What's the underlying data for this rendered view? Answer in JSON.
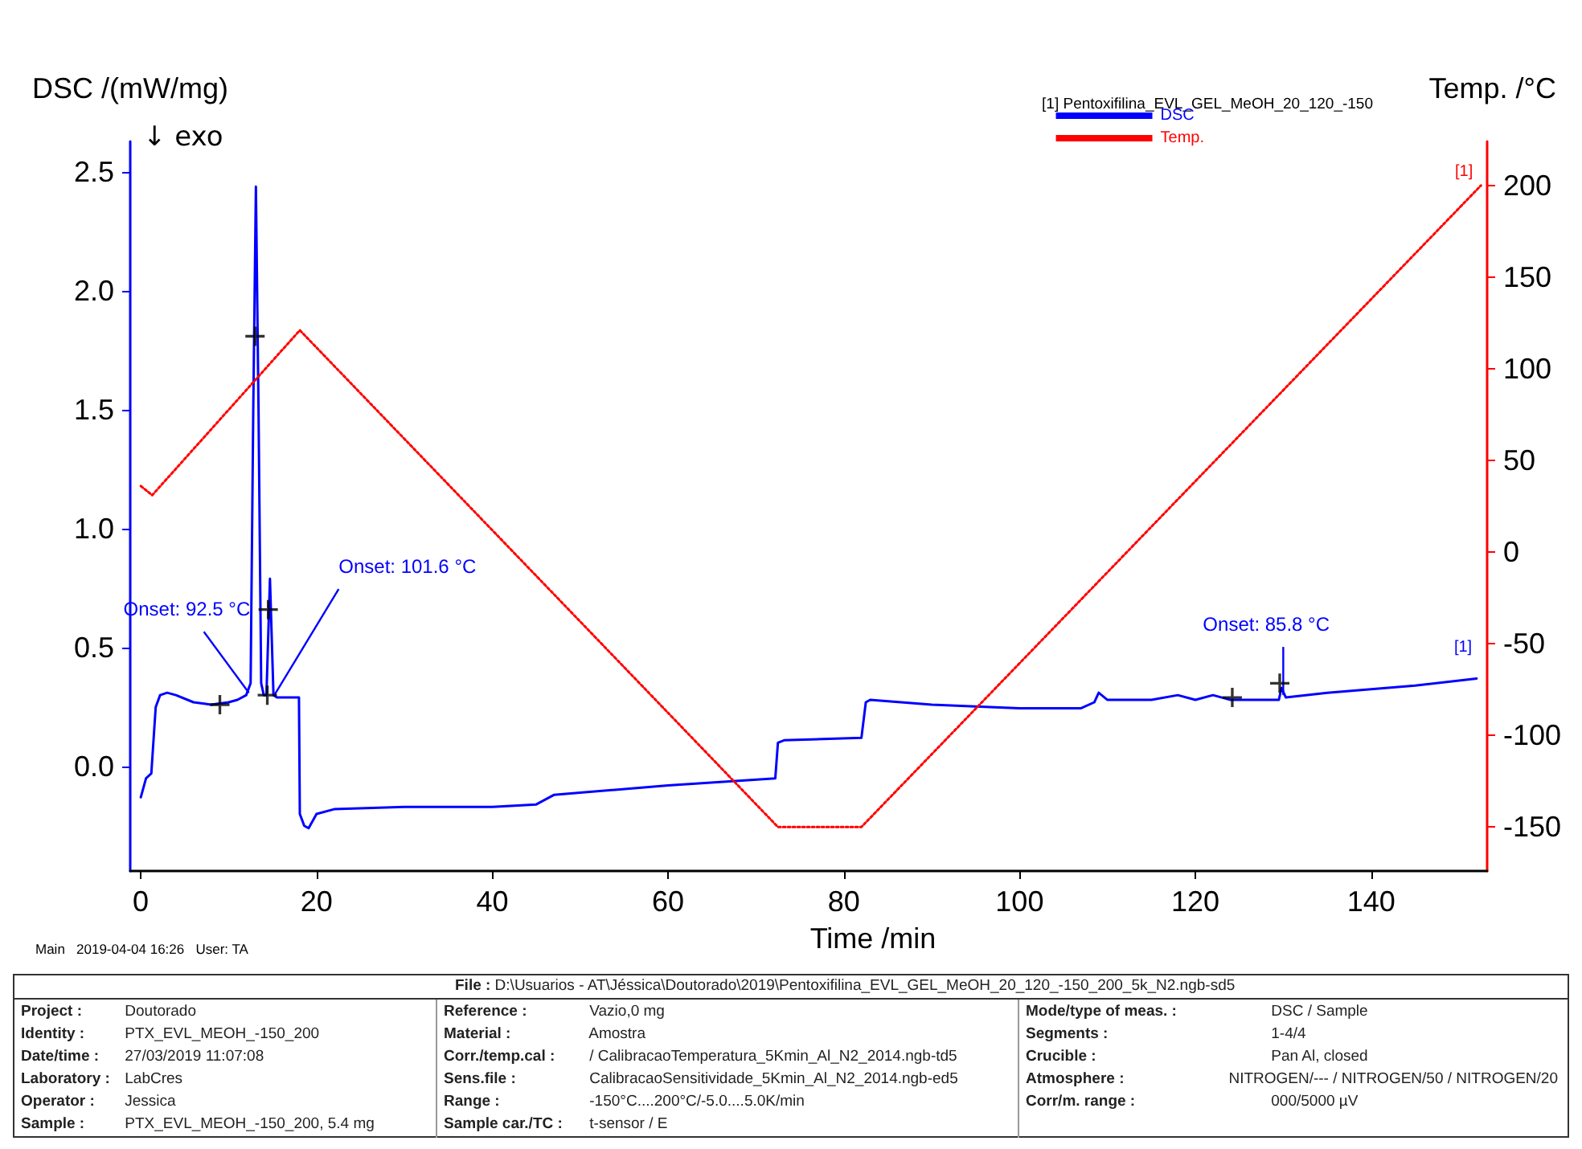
{
  "chart_data": {
    "type": "line",
    "xlabel": "Time /min",
    "ylabel": "DSC /(mW/mg)",
    "y2label": "Temp. /°C",
    "legend_title": "[1] Pentoxifilina_EVL_GEL_MeOH_20_120_-150",
    "legend": "top right",
    "grid": false,
    "marker": "none",
    "xlim": [
      -1.2,
      153.2
    ],
    "xticks": [
      0,
      20,
      40,
      60,
      80,
      100,
      120,
      140
    ],
    "ylim": [
      -0.44,
      2.63
    ],
    "yticks": [
      {
        "value": 0,
        "label": "0.0"
      },
      0.5,
      {
        "value": 1,
        "label": "1.0"
      },
      1.5,
      {
        "value": 2,
        "label": "2.0"
      },
      2.5
    ],
    "y2lim": [
      -174,
      224
    ],
    "y2ticks": [
      -150,
      -100,
      -50,
      0,
      50,
      100,
      150,
      200
    ],
    "series": [
      {
        "name": "DSC",
        "color": "#0000ff",
        "line_style": "solid",
        "x": [
          0,
          0.6,
          1.2,
          1.7,
          2.2,
          3,
          4,
          6,
          8,
          10,
          11,
          12,
          12.5,
          12.8,
          13.1,
          13.4,
          13.7,
          14,
          14.3,
          14.7,
          15.1,
          15.5,
          18,
          18.1,
          18.6,
          19.1,
          20,
          22,
          30,
          40,
          45,
          47,
          50,
          60,
          72.2,
          72.5,
          73.2,
          82,
          82.5,
          83,
          90,
          100,
          107,
          108.5,
          109,
          110,
          115,
          118,
          120,
          122,
          124,
          128,
          129.5,
          129.8,
          130.3,
          135,
          145,
          152
        ],
        "values": [
          -0.13,
          -0.05,
          -0.03,
          0.25,
          0.3,
          0.31,
          0.3,
          0.27,
          0.26,
          0.27,
          0.28,
          0.3,
          0.35,
          1.5,
          2.44,
          1.5,
          0.35,
          0.3,
          0.3,
          0.79,
          0.3,
          0.29,
          0.29,
          -0.2,
          -0.25,
          -0.26,
          -0.2,
          -0.18,
          -0.17,
          -0.17,
          -0.16,
          -0.12,
          -0.11,
          -0.08,
          -0.05,
          0.1,
          0.11,
          0.12,
          0.27,
          0.28,
          0.26,
          0.245,
          0.245,
          0.27,
          0.31,
          0.28,
          0.28,
          0.3,
          0.28,
          0.3,
          0.28,
          0.28,
          0.28,
          0.33,
          0.29,
          0.31,
          0.34,
          0.37
        ]
      },
      {
        "name": "Temp.",
        "color": "#ff0000",
        "line_style": "dotted",
        "axis": "y2",
        "x": [
          0,
          1.3,
          18.1,
          72.5,
          82,
          152.5
        ],
        "values": [
          36,
          31,
          121,
          -150,
          -150,
          200
        ]
      },
      {
        "type": "scatter",
        "color": "#000000",
        "marker": "cross",
        "x": [
          9,
          13,
          14.4,
          14.5,
          124.2,
          129.6
        ],
        "values": [
          0.26,
          1.81,
          0.3,
          0.66,
          0.29,
          0.35
        ]
      }
    ],
    "annotations": [
      "↓ exo",
      "[1]",
      "Main   2019-04-04 16:26   User: TA",
      "File : D:\\Usuarios - AT\\Jéssica\\Doutorado\\2019\\Pentoxifilina_EVL_GEL_MeOH_20_120_-150_200_5k_N2.ngb-sd5",
      "Project : Doutorado",
      "Identity : PTX_EVL_MEOH_-150_200",
      "Date/time : 27/03/2019 11:07:08",
      "Laboratory : LabCres",
      "Operator : Jessica",
      "Sample : PTX_EVL_MEOH_-150_200, 5.4 mg",
      "Reference : Vazio,0 mg",
      "Material : Amostra",
      "Corr./temp.cal : / CalibracaoTemperatura_5Kmin_Al_N2_2014.ngb-td5",
      "Sens.file : CalibracaoSensitividade_5Kmin_Al_N2_2014.ngb-ed5",
      "Range : -150°C....200°C/-5.0....5.0K/min",
      "Sample car./TC : t-sensor / E",
      "Mode/type of meas. : DSC / Sample",
      "Segments : 1-4/4",
      "Crucible : Pan Al, closed",
      "Atmosphere : NITROGEN/--- / NITROGEN/50 / NITROGEN/20",
      "Corr/m. range : 000/5000 µV",
      {
        "text": "Onset: 92.5 °C",
        "x": 12.3,
        "y": 0.31
      },
      {
        "text": "Onset: 101.6 °C",
        "x": 15.2,
        "y": 0.3
      },
      {
        "text": "Onset: 85.8 °C",
        "x": 130,
        "y": 0.3
      },
      {
        "text": "[1]",
        "x": 152,
        "y": 0.37
      }
    ]
  }
}
